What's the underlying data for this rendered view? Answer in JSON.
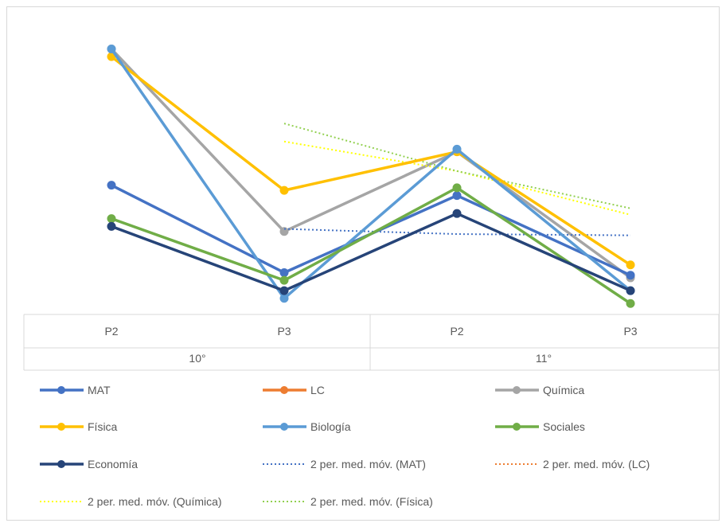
{
  "chart_data": {
    "type": "line",
    "title": "",
    "xlabel": "",
    "ylabel": "",
    "y_axis_visible": false,
    "grid": false,
    "ylim": [
      0,
      100
    ],
    "categories": [
      {
        "label": "P2",
        "group": "10°"
      },
      {
        "label": "P3",
        "group": "10°"
      },
      {
        "label": "P2",
        "group": "11°"
      },
      {
        "label": "P3",
        "group": "11°"
      }
    ],
    "groups": [
      "10°",
      "11°"
    ],
    "legend_position": "bottom",
    "series": [
      {
        "name": "MAT",
        "color": "#4472C4",
        "style": "solid",
        "values": [
          45,
          11,
          41,
          10
        ]
      },
      {
        "name": "LC",
        "color": "#ED7D31",
        "style": "solid",
        "values": [
          null,
          null,
          null,
          null
        ]
      },
      {
        "name": "Química",
        "color": "#A5A5A5",
        "style": "solid",
        "values": [
          98,
          27,
          58,
          9
        ]
      },
      {
        "name": "Física",
        "color": "#FFC000",
        "style": "solid",
        "values": [
          95,
          43,
          58,
          14
        ]
      },
      {
        "name": "Biología",
        "color": "#5B9BD5",
        "style": "solid",
        "values": [
          98,
          1,
          59,
          4
        ]
      },
      {
        "name": "Sociales",
        "color": "#70AD47",
        "style": "solid",
        "values": [
          32,
          8,
          44,
          -1
        ]
      },
      {
        "name": "Economía",
        "color": "#264478",
        "style": "solid",
        "values": [
          29,
          4,
          34,
          4
        ]
      },
      {
        "name": "2 per. med. móv. (MAT)",
        "color": "#4472C4",
        "style": "dotted",
        "values": [
          null,
          28,
          26,
          25.5
        ]
      },
      {
        "name": "2 per. med. móv. (LC)",
        "color": "#ED7D31",
        "style": "dotted",
        "values": [
          null,
          null,
          null,
          null
        ]
      },
      {
        "name": "2 per. med. móv. (Química)",
        "color": "#FFFF00",
        "style": "dotted",
        "values": [
          null,
          62,
          50.5,
          33.5
        ]
      },
      {
        "name": "2 per. med. móv. (Física)",
        "color": "#92D050",
        "style": "dotted",
        "values": [
          null,
          69,
          50.5,
          36
        ]
      }
    ]
  }
}
